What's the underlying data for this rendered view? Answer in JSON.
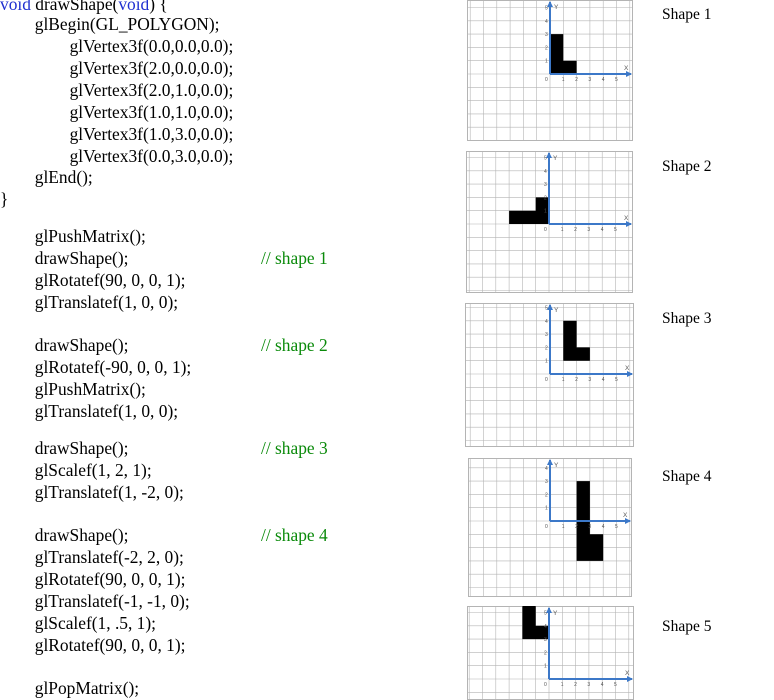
{
  "code": [
    {
      "text": "void drawShape(void) {",
      "kw": [
        "void",
        "void"
      ]
    },
    {
      "text": "        glBegin(GL_POLYGON);"
    },
    {
      "text": "                glVertex3f(0.0,0.0,0.0);"
    },
    {
      "text": "                glVertex3f(2.0,0.0,0.0);"
    },
    {
      "text": "                glVertex3f(2.0,1.0,0.0);"
    },
    {
      "text": "                glVertex3f(1.0,1.0,0.0);"
    },
    {
      "text": "                glVertex3f(1.0,3.0,0.0);"
    },
    {
      "text": "                glVertex3f(0.0,3.0,0.0);"
    },
    {
      "text": "        glEnd();"
    },
    {
      "text": "}"
    },
    {
      "text": "        glPushMatrix();"
    },
    {
      "text": "        drawShape();",
      "comment": "// shape 1"
    },
    {
      "text": "        glRotatef(90, 0, 0, 1);"
    },
    {
      "text": "        glTranslatef(1, 0, 0);"
    },
    {
      "text": "        drawShape();",
      "comment": "// shape 2"
    },
    {
      "text": "        glRotatef(-90, 0, 0, 1);"
    },
    {
      "text": "        glPushMatrix();"
    },
    {
      "text": "        glTranslatef(1, 0, 0);"
    },
    {
      "text": "        drawShape();",
      "comment": "// shape 3"
    },
    {
      "text": "        glScalef(1, 2, 1);"
    },
    {
      "text": "        glTranslatef(1, -2, 0);"
    },
    {
      "text": "        drawShape();",
      "comment": "// shape 4"
    },
    {
      "text": "        glTranslatef(-2, 2, 0);"
    },
    {
      "text": "        glRotatef(90, 0, 0, 1);"
    },
    {
      "text": "        glTranslatef(-1, -1, 0);"
    },
    {
      "text": "        glScalef(1, .5, 1);"
    },
    {
      "text": "        glRotatef(90, 0, 0, 1);"
    },
    {
      "text": "        glPopMatrix();"
    }
  ],
  "shapes": [
    {
      "label": "Shape 1",
      "polygon": [
        [
          0,
          0
        ],
        [
          2,
          0
        ],
        [
          2,
          1
        ],
        [
          1,
          1
        ],
        [
          1,
          3
        ],
        [
          0,
          3
        ]
      ]
    },
    {
      "label": "Shape 2",
      "polygon": [
        [
          0,
          0
        ],
        [
          0,
          2
        ],
        [
          -1,
          2
        ],
        [
          -1,
          1
        ],
        [
          -3,
          1
        ],
        [
          -3,
          0
        ]
      ]
    },
    {
      "label": "Shape 3",
      "polygon": [
        [
          1,
          1
        ],
        [
          3,
          1
        ],
        [
          3,
          2
        ],
        [
          2,
          2
        ],
        [
          2,
          4
        ],
        [
          1,
          4
        ]
      ]
    },
    {
      "label": "Shape 4",
      "polygon": [
        [
          2,
          -3
        ],
        [
          4,
          -3
        ],
        [
          4,
          -1
        ],
        [
          3,
          -1
        ],
        [
          3,
          3
        ],
        [
          2,
          3
        ]
      ]
    },
    {
      "label": "Shape 5",
      "polygon": [
        [
          -2,
          3
        ],
        [
          0,
          3
        ],
        [
          0,
          4
        ],
        [
          -1,
          4
        ],
        [
          -1,
          6
        ],
        [
          -2,
          6
        ]
      ]
    }
  ],
  "axis": {
    "x_label": "X",
    "y_label": "Y",
    "ticks": [
      "1",
      "2",
      "3",
      "4",
      "5"
    ],
    "origin": "0"
  },
  "colors": {
    "keyword": "#1f2fd0",
    "comment": "#0a8a0a",
    "axis": "#3c78c8",
    "grid": "#b4b4b4",
    "fill": "#000000"
  }
}
